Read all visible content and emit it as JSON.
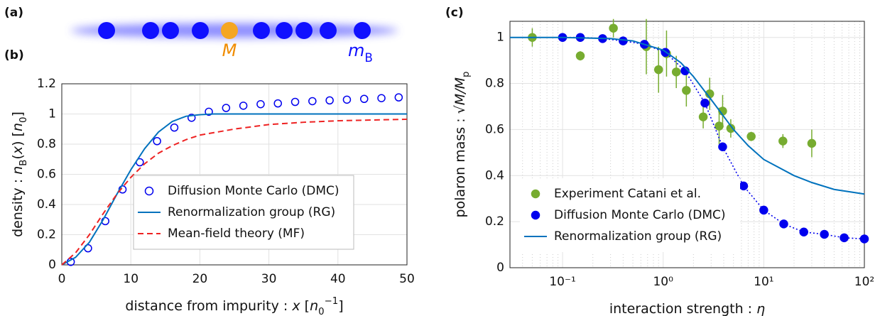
{
  "illustration": {
    "panel_label": "(a)",
    "impurity_label": "M",
    "boson_label": [
      {
        "text": "m",
        "style": "italic"
      },
      {
        "text": "B",
        "style": "sub"
      }
    ]
  },
  "chart_data": [
    {
      "type": "line",
      "panel_label": "(b)",
      "xlabel": [
        {
          "text": "distance from impurity :  ",
          "style": ""
        },
        {
          "text": "x",
          "style": "italic"
        },
        {
          "text": " [",
          "style": ""
        },
        {
          "text": "n",
          "style": "italic"
        },
        {
          "text": "0",
          "style": "sub"
        },
        {
          "text": "−1",
          "style": "sup"
        },
        {
          "text": "]",
          "style": ""
        }
      ],
      "ylabel": [
        {
          "text": "density :  ",
          "style": ""
        },
        {
          "text": "n",
          "style": "italic"
        },
        {
          "text": "B",
          "style": "sub"
        },
        {
          "text": "(",
          "style": ""
        },
        {
          "text": "x",
          "style": "italic"
        },
        {
          "text": ")  [",
          "style": ""
        },
        {
          "text": "n",
          "style": "italic"
        },
        {
          "text": "0",
          "style": "sub"
        },
        {
          "text": "]",
          "style": ""
        }
      ],
      "xlim": [
        0,
        50
      ],
      "xticks": [
        0,
        10,
        20,
        30,
        40,
        50
      ],
      "ylim": [
        0,
        1.2
      ],
      "yticks": [
        0,
        0.2,
        0.4,
        0.6,
        0.8,
        1,
        1.2
      ],
      "grid": true,
      "log_x": false,
      "legend": "lower right",
      "series": [
        {
          "name": "Diffusion Monte Carlo (DMC)",
          "color": "#0000ee",
          "marker": "open-circle",
          "line": "none",
          "x": [
            1.3,
            3.8,
            6.3,
            8.8,
            11.3,
            13.8,
            16.3,
            18.8,
            21.3,
            23.8,
            26.3,
            28.8,
            31.3,
            33.8,
            36.3,
            38.8,
            41.3,
            43.8,
            46.3,
            48.8
          ],
          "values": [
            0.02,
            0.11,
            0.29,
            0.5,
            0.68,
            0.82,
            0.91,
            0.975,
            1.015,
            1.04,
            1.055,
            1.065,
            1.07,
            1.08,
            1.085,
            1.09,
            1.095,
            1.1,
            1.105,
            1.11
          ]
        },
        {
          "name": "Renormalization group (RG)",
          "color": "#0072bd",
          "marker": "none",
          "line": "solid",
          "x": [
            0,
            2,
            4,
            6,
            8,
            10,
            12,
            14,
            16,
            18,
            20,
            22,
            25,
            30,
            40,
            50
          ],
          "values": [
            0,
            0.05,
            0.15,
            0.3,
            0.47,
            0.63,
            0.77,
            0.88,
            0.95,
            0.985,
            0.995,
            1,
            1,
            1,
            1,
            1
          ]
        },
        {
          "name": "Mean-field theory (MF)",
          "color": "#ee2222",
          "marker": "none",
          "line": "dashed",
          "x": [
            0,
            2,
            4,
            6,
            8,
            10,
            12,
            14,
            16,
            18,
            20,
            25,
            30,
            35,
            40,
            45,
            50
          ],
          "values": [
            0,
            0.08,
            0.2,
            0.34,
            0.47,
            0.58,
            0.67,
            0.74,
            0.79,
            0.83,
            0.86,
            0.9,
            0.93,
            0.945,
            0.955,
            0.96,
            0.965
          ]
        }
      ]
    },
    {
      "type": "line",
      "panel_label": "(c)",
      "xlabel": [
        {
          "text": "interaction strength :  ",
          "style": ""
        },
        {
          "text": "η",
          "style": "italic"
        }
      ],
      "ylabel": [
        {
          "text": "polaron mass :  ",
          "style": ""
        },
        {
          "text": "√",
          "style": ""
        },
        {
          "text": "M/M",
          "style": "italic"
        },
        {
          "text": "p",
          "style": "sub"
        }
      ],
      "xlim": [
        0.03,
        100
      ],
      "xticks": [
        {
          "value": 0.1,
          "label": "10⁻¹"
        },
        {
          "value": 1,
          "label": "10⁰"
        },
        {
          "value": 10,
          "label": "10¹"
        },
        {
          "value": 100,
          "label": "10²"
        }
      ],
      "minor_xticks": [
        0.04,
        0.05,
        0.06,
        0.07,
        0.08,
        0.09,
        0.2,
        0.3,
        0.4,
        0.5,
        0.6,
        0.7,
        0.8,
        0.9,
        2,
        3,
        4,
        5,
        6,
        7,
        8,
        9,
        20,
        30,
        40,
        50,
        60,
        70,
        80,
        90
      ],
      "ylim": [
        0,
        1.07
      ],
      "yticks": [
        0,
        0.2,
        0.4,
        0.6,
        0.8,
        1
      ],
      "grid": true,
      "log_x": true,
      "legend": "lower left",
      "series": [
        {
          "name": "Experiment Catani et al.",
          "color": "#77ac30",
          "marker": "circle",
          "line": "none",
          "x": [
            0.05,
            0.15,
            0.32,
            0.68,
            0.9,
            1.08,
            1.35,
            1.7,
            2.5,
            2.9,
            3.6,
            3.9,
            4.7,
            7.5,
            15.5,
            30
          ],
          "values": [
            1,
            0.92,
            1.04,
            0.96,
            0.86,
            0.93,
            0.85,
            0.77,
            0.655,
            0.755,
            0.615,
            0.68,
            0.605,
            0.57,
            0.55,
            0.54
          ],
          "errors": [
            0.04,
            0.02,
            0.04,
            0.12,
            0.1,
            0.1,
            0.07,
            0.07,
            0.05,
            0.07,
            0.08,
            0.07,
            0.04,
            0.02,
            0.03,
            0.06
          ]
        },
        {
          "name": "Diffusion Monte Carlo (DMC)",
          "color": "#0000ee",
          "marker": "circle",
          "line": "dotted",
          "x": [
            0.1,
            0.15,
            0.25,
            0.4,
            0.65,
            1.05,
            1.65,
            2.6,
            3.9,
            6.3,
            10,
            15.8,
            25,
            40,
            63,
            100
          ],
          "values": [
            1,
            1,
            0.995,
            0.985,
            0.97,
            0.935,
            0.855,
            0.715,
            0.525,
            0.355,
            0.25,
            0.19,
            0.155,
            0.145,
            0.13,
            0.125
          ]
        },
        {
          "name": "Renormalization group (RG)",
          "color": "#0072bd",
          "marker": "none",
          "line": "solid",
          "x": [
            0.03,
            0.1,
            0.3,
            0.5,
            1,
            1.5,
            2,
            3,
            5,
            7,
            10,
            20,
            30,
            50,
            100
          ],
          "values": [
            1,
            1,
            0.995,
            0.985,
            0.945,
            0.89,
            0.83,
            0.73,
            0.6,
            0.53,
            0.47,
            0.4,
            0.37,
            0.34,
            0.32
          ]
        }
      ]
    }
  ]
}
